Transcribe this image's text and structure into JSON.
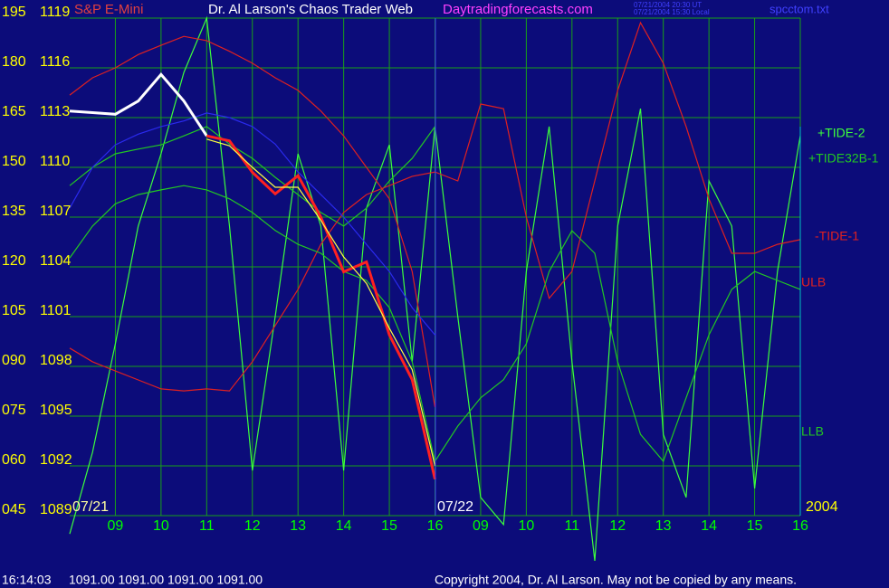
{
  "chart_data": {
    "type": "line",
    "title": "Dr. Al Larson's Chaos Trader Web",
    "instrument": "S&P E-Mini",
    "website": "Daytradingforecasts.com",
    "timestamps": [
      "07/21/2004 20:30 UT",
      "07/21/2004 15:30 Local"
    ],
    "file": "spcctom.txt",
    "date_labels": [
      "07/21",
      "07/22",
      "2004"
    ],
    "footer": {
      "time": "16:14:03",
      "prices": "1091.00 1091.00 1091.00 1091.00",
      "copyright": "Copyright 2004, Dr. Al Larson. May not be copied by any means."
    },
    "x": [
      8,
      8.5,
      9,
      9.5,
      10,
      10.5,
      11,
      11.5,
      12,
      12.5,
      13,
      13.5,
      14,
      14.5,
      15,
      15.5,
      16,
      16.5,
      17,
      17.5,
      18,
      18.5,
      19,
      19.5,
      20,
      20.5,
      21,
      21.5,
      22,
      22.5,
      23,
      23.5,
      24
    ],
    "xlim": [
      8,
      24
    ],
    "xticks": [
      {
        "value": 9,
        "label": "09"
      },
      10,
      11,
      12,
      13,
      14,
      15,
      16,
      {
        "value": 17,
        "label": "09"
      },
      {
        "value": 18,
        "label": "10"
      },
      {
        "value": 19,
        "label": "11"
      },
      {
        "value": 20,
        "label": "12"
      },
      {
        "value": 21,
        "label": "13"
      },
      {
        "value": 22,
        "label": "14"
      },
      {
        "value": 23,
        "label": "15"
      },
      {
        "value": 24,
        "label": "16"
      }
    ],
    "ylim": [
      45,
      195
    ],
    "yticks": [
      {
        "value": 45,
        "label": "045"
      },
      {
        "value": 60,
        "label": "060"
      },
      {
        "value": 75,
        "label": "075"
      },
      {
        "value": 90,
        "label": "090"
      },
      105,
      120,
      135,
      150,
      165,
      180,
      195
    ],
    "y2lim": [
      1089,
      1119
    ],
    "y2ticks": [
      1089,
      1092,
      1095,
      1098,
      1101,
      1104,
      1107,
      1110,
      1113,
      1116,
      1119
    ],
    "grid": true,
    "series": [
      {
        "name": "+TIDE-2",
        "color": "#3cff3c",
        "values": [
          39.5,
          64.1,
          96.8,
          132.3,
          154.1,
          178.6,
          195,
          132.3,
          58.6,
          105,
          154.1,
          132.3,
          58.6,
          137.7,
          156.8,
          91.4,
          162.3,
          105,
          50.5,
          42.3,
          118.6,
          162.3,
          91.4,
          31.4,
          132.3,
          167.7,
          69.5,
          50.5,
          145.9,
          132.3,
          53.2,
          118.6,
          159.5
        ]
      },
      {
        "name": "+TIDE32B-1",
        "color": "#22c822",
        "values": [
          144.5,
          150,
          154.1,
          155.5,
          156.8,
          159.5,
          162.3,
          157,
          152.7,
          147,
          141.8,
          136.4,
          132.3,
          137.7,
          145.9,
          152.7,
          162.3,
          null,
          null,
          null,
          null,
          null,
          null,
          null,
          null,
          null,
          null,
          null,
          null,
          null,
          null,
          null,
          null
        ]
      },
      {
        "name": "-TIDE-1",
        "color": "#e02020",
        "values": [
          95.5,
          91.4,
          88.6,
          85.9,
          83.2,
          82.6,
          83.2,
          82.6,
          91.4,
          102.3,
          113.2,
          126.8,
          136.4,
          141.8,
          144.5,
          147.3,
          148.6,
          145.9,
          169.1,
          167.7,
          135,
          110.5,
          118.6,
          145.9,
          173.2,
          193.6,
          181.4,
          162.3,
          140.5,
          124.1,
          124.1,
          126.8,
          128.2
        ]
      },
      {
        "name": "ULB",
        "color": "#e02020",
        "values": [
          171.8,
          177,
          180,
          184,
          186.8,
          189.5,
          188.2,
          185,
          181.4,
          177,
          173.2,
          167,
          159.5,
          150,
          140.5,
          118.6,
          77.7,
          null,
          null,
          null,
          null,
          null,
          null,
          null,
          null,
          null,
          null,
          null,
          null,
          null,
          null,
          null,
          null
        ]
      },
      {
        "name": "LLB",
        "color": "#22c822",
        "values": [
          122.7,
          132.3,
          139,
          141.8,
          143.2,
          144.5,
          143.2,
          140.5,
          136.4,
          131,
          126.8,
          124.1,
          118.6,
          115.9,
          107.7,
          91.4,
          61.4,
          72,
          80.5,
          86,
          96.8,
          118.6,
          130.9,
          124.1,
          91.4,
          69.5,
          61.4,
          80.5,
          99.5,
          113.2,
          118.6,
          115.9,
          113.2
        ]
      },
      {
        "color": "#2a2aee",
        "values": [
          137.7,
          150,
          156.8,
          160,
          162.3,
          164,
          166.4,
          165,
          162.3,
          157,
          148.6,
          141.8,
          135,
          126.8,
          118.6,
          107.7,
          99.5,
          null,
          null,
          null,
          null,
          null,
          null,
          null,
          null,
          null,
          null,
          null,
          null,
          null,
          null,
          null,
          null
        ]
      },
      {
        "color": "#ffffff",
        "axis": "y2",
        "values": [
          1113.4,
          1113.3,
          1113.2,
          1114.0,
          1115.6,
          1114.0,
          1111.9,
          null,
          null,
          null,
          null,
          null,
          null,
          null,
          null,
          null,
          null,
          null,
          null,
          null,
          null,
          null,
          null,
          null,
          null,
          null,
          null,
          null,
          null,
          null,
          null,
          null,
          null
        ]
      },
      {
        "color": "#ff2020",
        "axis": "y2",
        "values": [
          null,
          null,
          null,
          null,
          null,
          null,
          1111.9,
          1111.6,
          1109.7,
          1108.4,
          1109.5,
          1107.0,
          1103.7,
          1104.3,
          1099.9,
          1097.2,
          1091.2,
          null,
          null,
          null,
          null,
          null,
          null,
          null,
          null,
          null,
          null,
          null,
          null,
          null,
          null,
          null,
          null
        ]
      },
      {
        "color": "#ffff40",
        "axis": "y2",
        "values": [
          null,
          null,
          null,
          null,
          null,
          null,
          1111.7,
          1111.3,
          1110.0,
          1108.8,
          1108.8,
          1106.8,
          1104.6,
          1103.0,
          1100.3,
          1097.8,
          1092.0,
          null,
          null,
          null,
          null,
          null,
          null,
          null,
          null,
          null,
          null,
          null,
          null,
          null,
          null,
          null,
          null
        ]
      }
    ]
  }
}
